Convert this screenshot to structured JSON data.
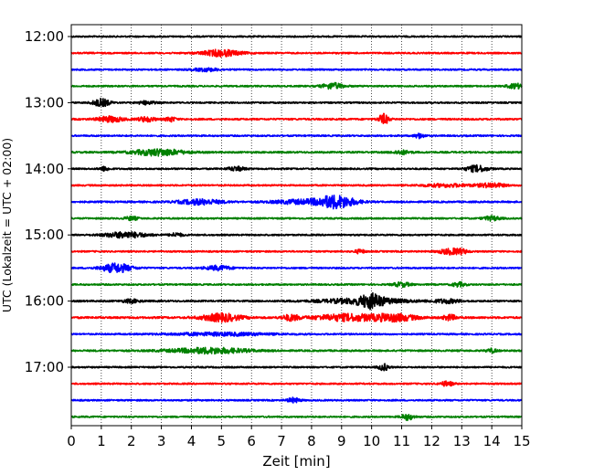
{
  "chart_data": {
    "type": "line",
    "title": "",
    "xlabel": "Zeit  [min]",
    "ylabel": "UTC (Lokalzeit = UTC + 02:00)",
    "xlim": [
      0,
      15
    ],
    "x_ticks": [
      "0",
      "1",
      "2",
      "3",
      "4",
      "5",
      "6",
      "7",
      "8",
      "9",
      "10",
      "11",
      "12",
      "13",
      "14",
      "15"
    ],
    "y_ticks": [
      "12:00",
      "13:00",
      "14:00",
      "15:00",
      "16:00",
      "17:00"
    ],
    "grid": "vertical dotted",
    "colors": [
      "#000000",
      "#ff0000",
      "#0000ff",
      "#008000"
    ],
    "series": [
      {
        "start": "12:00",
        "color": "#000000",
        "noise": 0.8,
        "bursts": []
      },
      {
        "start": "12:15",
        "color": "#ff0000",
        "noise": 0.8,
        "bursts": [
          [
            5.0,
            0.45,
            3.5
          ]
        ]
      },
      {
        "start": "12:30",
        "color": "#0000ff",
        "noise": 0.8,
        "bursts": [
          [
            4.5,
            0.3,
            1.6
          ]
        ]
      },
      {
        "start": "12:45",
        "color": "#008000",
        "noise": 0.8,
        "bursts": [
          [
            8.7,
            0.25,
            3.2
          ],
          [
            14.8,
            0.2,
            2.5
          ]
        ]
      },
      {
        "start": "13:00",
        "color": "#000000",
        "noise": 0.8,
        "bursts": [
          [
            1.0,
            0.2,
            4.0
          ],
          [
            2.5,
            0.2,
            1.8
          ]
        ]
      },
      {
        "start": "13:15",
        "color": "#ff0000",
        "noise": 0.9,
        "bursts": [
          [
            1.3,
            0.3,
            3.0
          ],
          [
            2.5,
            0.2,
            2.5
          ],
          [
            3.3,
            0.12,
            2.5
          ],
          [
            10.4,
            0.12,
            5.5
          ]
        ]
      },
      {
        "start": "13:30",
        "color": "#0000ff",
        "noise": 0.8,
        "bursts": [
          [
            11.6,
            0.12,
            2.5
          ]
        ]
      },
      {
        "start": "13:45",
        "color": "#008000",
        "noise": 0.9,
        "bursts": [
          [
            2.9,
            0.6,
            3.5
          ],
          [
            11.0,
            0.2,
            2.0
          ]
        ]
      },
      {
        "start": "14:00",
        "color": "#000000",
        "noise": 0.8,
        "bursts": [
          [
            1.1,
            0.12,
            2.2
          ],
          [
            5.5,
            0.2,
            2.2
          ],
          [
            13.5,
            0.25,
            3.5
          ]
        ]
      },
      {
        "start": "14:15",
        "color": "#ff0000",
        "noise": 0.8,
        "bursts": [
          [
            12.5,
            0.6,
            1.6
          ],
          [
            14.0,
            0.3,
            2.4
          ]
        ]
      },
      {
        "start": "14:30",
        "color": "#0000ff",
        "noise": 0.9,
        "bursts": [
          [
            4.3,
            0.5,
            2.8
          ],
          [
            7.5,
            0.6,
            2.0
          ],
          [
            8.8,
            0.45,
            7.0
          ]
        ]
      },
      {
        "start": "14:45",
        "color": "#008000",
        "noise": 0.8,
        "bursts": [
          [
            2.0,
            0.15,
            2.0
          ],
          [
            14.0,
            0.2,
            2.3
          ]
        ]
      },
      {
        "start": "15:00",
        "color": "#000000",
        "noise": 0.8,
        "bursts": [
          [
            1.8,
            0.5,
            3.2
          ],
          [
            3.5,
            0.15,
            2.0
          ]
        ]
      },
      {
        "start": "15:15",
        "color": "#ff0000",
        "noise": 0.8,
        "bursts": [
          [
            9.6,
            0.12,
            2.0
          ],
          [
            12.6,
            0.25,
            3.0
          ],
          [
            13.0,
            0.15,
            2.0
          ]
        ]
      },
      {
        "start": "15:30",
        "color": "#0000ff",
        "noise": 0.8,
        "bursts": [
          [
            1.5,
            0.35,
            5.0
          ],
          [
            4.9,
            0.3,
            2.4
          ]
        ]
      },
      {
        "start": "15:45",
        "color": "#008000",
        "noise": 0.8,
        "bursts": [
          [
            11.0,
            0.2,
            2.4
          ],
          [
            12.9,
            0.15,
            2.4
          ]
        ]
      },
      {
        "start": "16:00",
        "color": "#000000",
        "noise": 0.9,
        "bursts": [
          [
            2.0,
            0.2,
            1.8
          ],
          [
            9.8,
            1.0,
            3.0
          ],
          [
            10.0,
            0.25,
            5.5
          ],
          [
            12.5,
            0.3,
            2.0
          ]
        ]
      },
      {
        "start": "16:15",
        "color": "#ff0000",
        "noise": 1.0,
        "bursts": [
          [
            5.0,
            0.45,
            4.2
          ],
          [
            7.3,
            0.2,
            3.0
          ],
          [
            9.2,
            0.8,
            3.6
          ],
          [
            10.8,
            0.5,
            3.5
          ],
          [
            12.6,
            0.15,
            3.0
          ]
        ]
      },
      {
        "start": "16:30",
        "color": "#0000ff",
        "noise": 0.8,
        "bursts": [
          [
            5.0,
            1.2,
            1.6
          ]
        ]
      },
      {
        "start": "16:45",
        "color": "#008000",
        "noise": 0.9,
        "bursts": [
          [
            4.6,
            0.9,
            3.0
          ],
          [
            14.0,
            0.12,
            2.0
          ]
        ]
      },
      {
        "start": "17:00",
        "color": "#000000",
        "noise": 0.8,
        "bursts": [
          [
            10.4,
            0.12,
            3.5
          ]
        ]
      },
      {
        "start": "17:15",
        "color": "#ff0000",
        "noise": 0.8,
        "bursts": [
          [
            12.5,
            0.15,
            2.5
          ]
        ]
      },
      {
        "start": "17:30",
        "color": "#0000ff",
        "noise": 0.8,
        "bursts": [
          [
            7.4,
            0.15,
            2.5
          ]
        ]
      },
      {
        "start": "17:45",
        "color": "#008000",
        "noise": 0.8,
        "bursts": [
          [
            11.2,
            0.15,
            3.2
          ]
        ]
      }
    ]
  }
}
